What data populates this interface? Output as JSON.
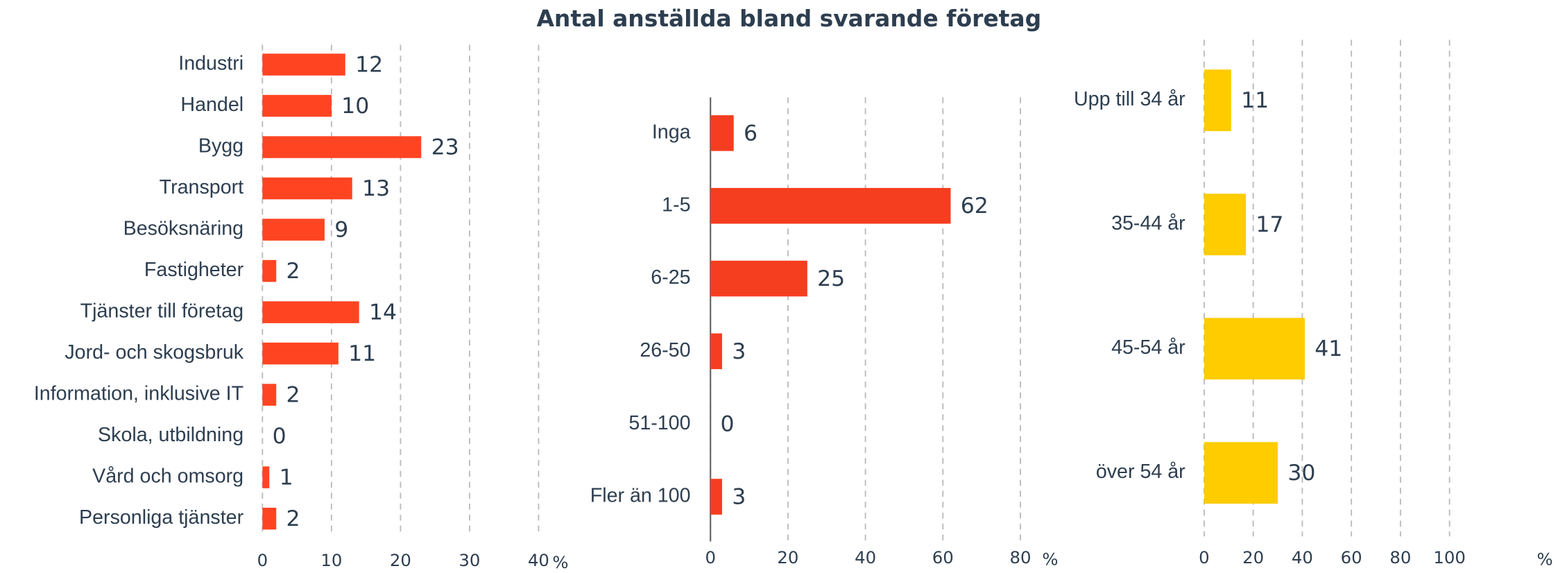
{
  "title": "Antal anställda bland svarande företag",
  "chart_data": [
    {
      "type": "hbar",
      "categories": [
        "Industri",
        "Handel",
        "Bygg",
        "Transport",
        "Besöksnäring",
        "Fastigheter",
        "Tjänster till företag",
        "Jord- och skogsbruk",
        "Information, inklusive IT",
        "Skola, utbildning",
        "Vård och omsorg",
        "Personliga tjänster"
      ],
      "values": [
        12,
        10,
        23,
        13,
        9,
        2,
        14,
        11,
        2,
        0,
        1,
        2
      ],
      "color": "#ff4422",
      "xlim": [
        0,
        40
      ],
      "xticks": [
        0,
        10,
        20,
        30,
        40
      ],
      "xlabel": "%",
      "grid": true,
      "axis_line": false
    },
    {
      "type": "hbar",
      "categories": [
        "Inga",
        "1-5",
        "6-25",
        "26-50",
        "51-100",
        "Fler än 100"
      ],
      "values": [
        6,
        62,
        25,
        3,
        0,
        3
      ],
      "color": "#f53d20",
      "xlim": [
        0,
        80
      ],
      "xticks": [
        0,
        20,
        40,
        60,
        80
      ],
      "xlabel": "%",
      "grid": true,
      "axis_line": true
    },
    {
      "type": "hbar",
      "categories": [
        "Upp till 34 år",
        "35-44 år",
        "45-54 år",
        "över 54 år"
      ],
      "values": [
        11,
        17,
        41,
        30
      ],
      "color": "#ffcc00",
      "xlim": [
        0,
        100
      ],
      "xticks": [
        0,
        20,
        40,
        60,
        80,
        100
      ],
      "xlabel": "%",
      "grid": true,
      "axis_line": false
    }
  ]
}
